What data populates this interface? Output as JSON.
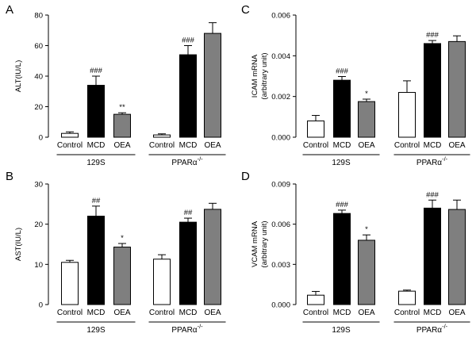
{
  "chart_data": [
    {
      "panel": "A",
      "type": "bar",
      "ylabel_lines": [
        "ALT(IU/L)"
      ],
      "ylim": [
        0,
        80
      ],
      "yticks": [
        0,
        20,
        40,
        60,
        80
      ],
      "ytick_labels": [
        "0",
        "20",
        "40",
        "60",
        "80"
      ],
      "categories": [
        "Control",
        "MCD",
        "OEA"
      ],
      "groups": [
        {
          "name": "129S",
          "name_sup": "",
          "values": [
            2.5,
            34,
            15
          ],
          "errors": [
            1,
            6,
            1
          ],
          "annotations": [
            "",
            "###",
            "**"
          ]
        },
        {
          "name": "PPARα",
          "name_sup": "-/-",
          "values": [
            1.5,
            54,
            68
          ],
          "errors": [
            0.7,
            6,
            7
          ],
          "annotations": [
            "",
            "###",
            ""
          ]
        }
      ]
    },
    {
      "panel": "B",
      "type": "bar",
      "ylabel_lines": [
        "AST(IU/L)"
      ],
      "ylim": [
        0,
        30
      ],
      "yticks": [
        0,
        10,
        20,
        30
      ],
      "ytick_labels": [
        "0",
        "10",
        "20",
        "30"
      ],
      "categories": [
        "Control",
        "MCD",
        "OEA"
      ],
      "groups": [
        {
          "name": "129S",
          "name_sup": "",
          "values": [
            10.5,
            22,
            14.3
          ],
          "errors": [
            0.5,
            2.5,
            0.9
          ],
          "annotations": [
            "",
            "##",
            "*"
          ]
        },
        {
          "name": "PPARα",
          "name_sup": "-/-",
          "values": [
            11.3,
            20.5,
            23.7
          ],
          "errors": [
            1.1,
            1,
            1.5
          ],
          "annotations": [
            "",
            "##",
            ""
          ]
        }
      ]
    },
    {
      "panel": "C",
      "type": "bar",
      "ylabel_lines": [
        "ICAM mRNA",
        "(arbitrary unit)"
      ],
      "ylim": [
        0,
        0.006
      ],
      "yticks": [
        0,
        0.002,
        0.004,
        0.006
      ],
      "ytick_labels": [
        "0.000",
        "0.002",
        "0.004",
        "0.006"
      ],
      "categories": [
        "Control",
        "MCD",
        "OEA"
      ],
      "groups": [
        {
          "name": "129S",
          "name_sup": "",
          "values": [
            0.0008,
            0.0028,
            0.00175
          ],
          "errors": [
            0.00027,
            0.00018,
            0.00012
          ],
          "annotations": [
            "",
            "###",
            "*"
          ]
        },
        {
          "name": "PPARα",
          "name_sup": "-/-",
          "values": [
            0.0022,
            0.0046,
            0.0047
          ],
          "errors": [
            0.00057,
            0.00015,
            0.00028
          ],
          "annotations": [
            "",
            "###",
            ""
          ]
        }
      ]
    },
    {
      "panel": "D",
      "type": "bar",
      "ylabel_lines": [
        "VCAM mRNA",
        "(arbitrary unit)"
      ],
      "ylim": [
        0,
        0.009
      ],
      "yticks": [
        0,
        0.003,
        0.006,
        0.009
      ],
      "ytick_labels": [
        "0.000",
        "0.003",
        "0.006",
        "0.009"
      ],
      "categories": [
        "Control",
        "MCD",
        "OEA"
      ],
      "groups": [
        {
          "name": "129S",
          "name_sup": "",
          "values": [
            0.0007,
            0.0068,
            0.0048
          ],
          "errors": [
            0.00028,
            0.00025,
            0.0004
          ],
          "annotations": [
            "",
            "###",
            "*"
          ]
        },
        {
          "name": "PPARα",
          "name_sup": "-/-",
          "values": [
            0.001,
            0.0072,
            0.0071
          ],
          "errors": [
            8e-05,
            0.0006,
            0.0007
          ],
          "annotations": [
            "",
            "###",
            ""
          ]
        }
      ]
    }
  ],
  "colors": {
    "Control": "#ffffff",
    "MCD": "#000000",
    "OEA": "#7f7f7f",
    "stroke": "#000000"
  }
}
